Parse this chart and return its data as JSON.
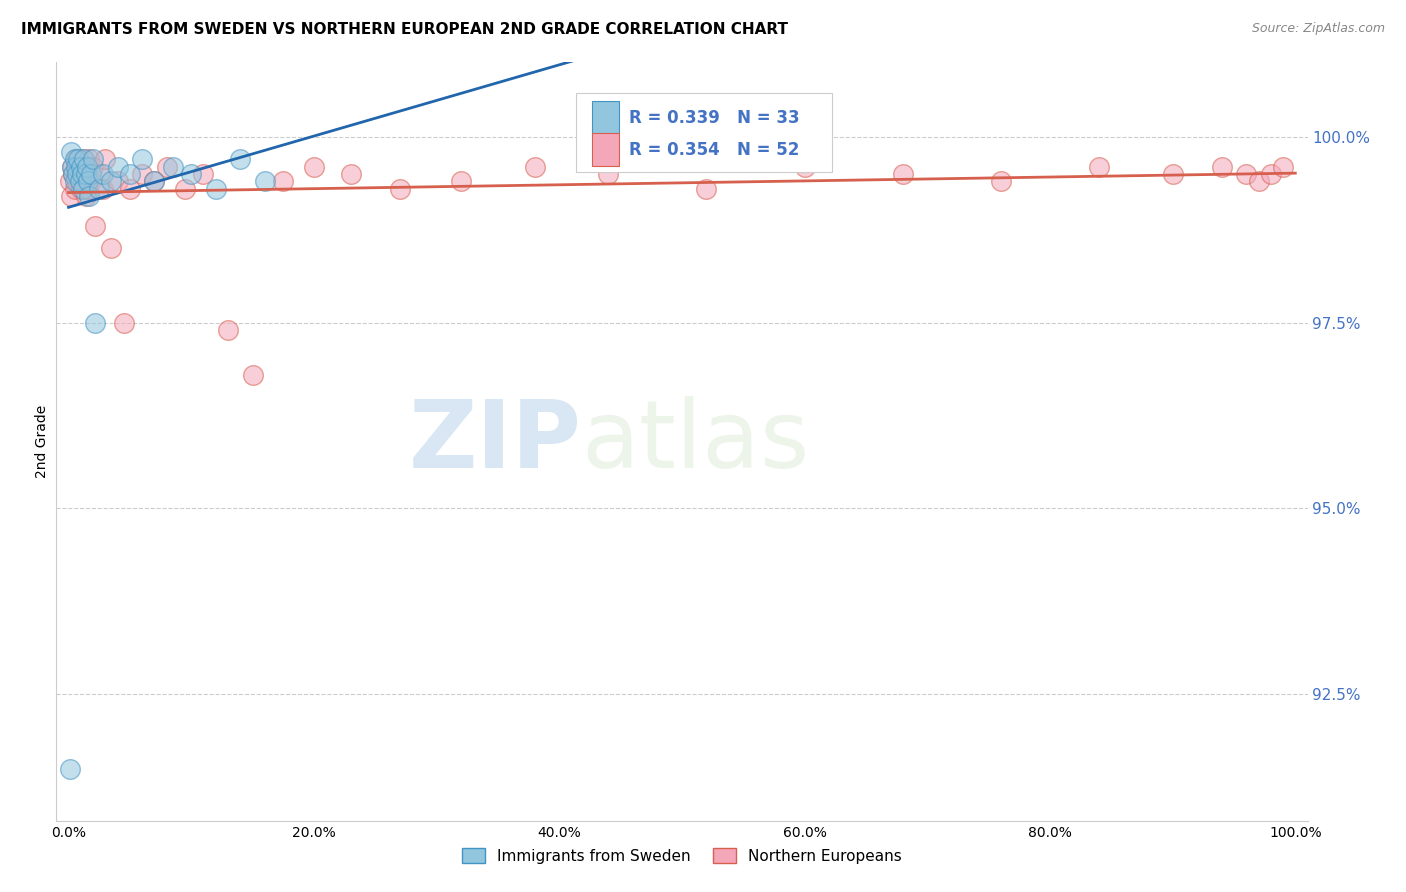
{
  "title": "IMMIGRANTS FROM SWEDEN VS NORTHERN EUROPEAN 2ND GRADE CORRELATION CHART",
  "source": "Source: ZipAtlas.com",
  "ylabel": "2nd Grade",
  "yticks": [
    92.5,
    95.0,
    97.5,
    100.0
  ],
  "xlim": [
    -0.01,
    1.01
  ],
  "ylim": [
    90.8,
    101.0
  ],
  "watermark_zip": "ZIP",
  "watermark_atlas": "atlas",
  "legend_r1": "R = 0.339",
  "legend_n1": "N = 33",
  "legend_r2": "R = 0.354",
  "legend_n2": "N = 52",
  "sweden_face_color": "#92c5de",
  "sweden_edge_color": "#4393c3",
  "northern_face_color": "#f4a7b9",
  "northern_edge_color": "#d6604d",
  "sweden_line_color": "#2166ac",
  "northern_line_color": "#d6604d",
  "sw_x": [
    0.001,
    0.002,
    0.003,
    0.004,
    0.005,
    0.005,
    0.006,
    0.007,
    0.008,
    0.009,
    0.01,
    0.011,
    0.012,
    0.013,
    0.014,
    0.015,
    0.016,
    0.017,
    0.018,
    0.02,
    0.022,
    0.025,
    0.028,
    0.035,
    0.04,
    0.05,
    0.06,
    0.07,
    0.085,
    0.1,
    0.12,
    0.14,
    0.16
  ],
  "sw_y": [
    91.5,
    99.8,
    99.6,
    99.5,
    99.7,
    99.4,
    99.6,
    99.5,
    99.7,
    99.4,
    99.6,
    99.5,
    99.3,
    99.7,
    99.5,
    99.6,
    99.4,
    99.2,
    99.5,
    99.7,
    97.5,
    99.3,
    99.5,
    99.4,
    99.6,
    99.5,
    99.7,
    99.4,
    99.6,
    99.5,
    99.3,
    99.7,
    99.4
  ],
  "ne_x": [
    0.001,
    0.002,
    0.003,
    0.004,
    0.005,
    0.006,
    0.007,
    0.008,
    0.009,
    0.01,
    0.011,
    0.012,
    0.013,
    0.014,
    0.015,
    0.016,
    0.017,
    0.018,
    0.02,
    0.022,
    0.025,
    0.028,
    0.03,
    0.035,
    0.04,
    0.045,
    0.05,
    0.06,
    0.07,
    0.08,
    0.095,
    0.11,
    0.13,
    0.15,
    0.175,
    0.2,
    0.23,
    0.27,
    0.32,
    0.38,
    0.44,
    0.52,
    0.6,
    0.68,
    0.76,
    0.84,
    0.9,
    0.94,
    0.96,
    0.97,
    0.98,
    0.99
  ],
  "ne_y": [
    99.4,
    99.2,
    99.6,
    99.5,
    99.3,
    99.7,
    99.4,
    99.6,
    99.5,
    99.3,
    99.7,
    99.4,
    99.6,
    99.2,
    99.5,
    99.3,
    99.7,
    99.4,
    99.6,
    98.8,
    99.5,
    99.3,
    99.7,
    98.5,
    99.4,
    97.5,
    99.3,
    99.5,
    99.4,
    99.6,
    99.3,
    99.5,
    97.4,
    96.8,
    99.4,
    99.6,
    99.5,
    99.3,
    99.4,
    99.6,
    99.5,
    99.3,
    99.6,
    99.5,
    99.4,
    99.6,
    99.5,
    99.6,
    99.5,
    99.4,
    99.5,
    99.6
  ]
}
